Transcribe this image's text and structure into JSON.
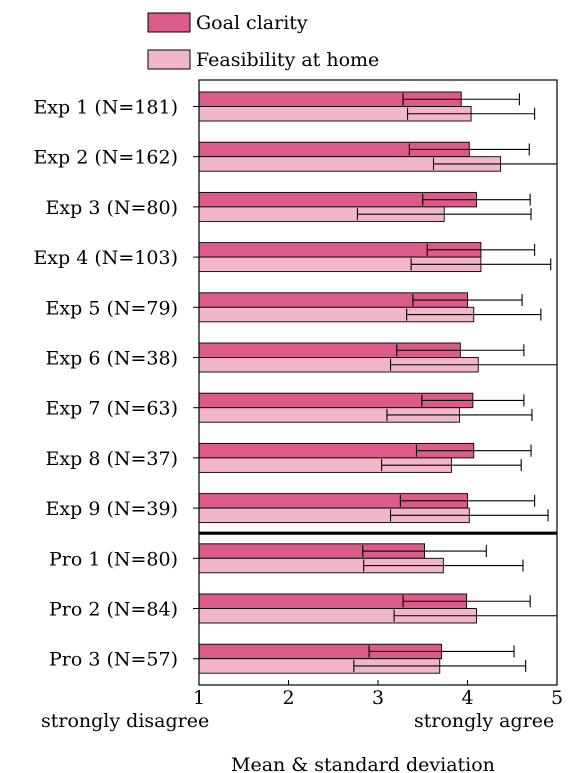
{
  "chart_data": {
    "type": "bar",
    "orientation": "horizontal",
    "categories": [
      "Exp 1 (N=181)",
      "Exp 2 (N=162)",
      "Exp 3 (N=80)",
      "Exp 4 (N=103)",
      "Exp 5 (N=79)",
      "Exp 6 (N=38)",
      "Exp 7 (N=63)",
      "Exp 8 (N=37)",
      "Exp 9 (N=39)",
      "Pro 1 (N=80)",
      "Pro 2 (N=84)",
      "Pro 3 (N=57)"
    ],
    "series": [
      {
        "name": "Goal clarity",
        "color": "#db5c8b",
        "values": [
          3.93,
          4.02,
          4.1,
          4.15,
          4.0,
          3.92,
          4.06,
          4.07,
          4.0,
          3.52,
          3.99,
          3.71
        ],
        "sd": [
          0.65,
          0.67,
          0.6,
          0.6,
          0.61,
          0.71,
          0.57,
          0.64,
          0.75,
          0.69,
          0.71,
          0.81
        ]
      },
      {
        "name": "Feasibility at home",
        "color": "#f2b6cb",
        "values": [
          4.04,
          4.37,
          3.74,
          4.15,
          4.07,
          4.12,
          3.91,
          3.82,
          4.02,
          3.73,
          4.1,
          3.69
        ],
        "sd": [
          0.71,
          0.75,
          0.97,
          0.78,
          0.75,
          0.98,
          0.81,
          0.78,
          0.88,
          0.89,
          0.92,
          0.96
        ]
      }
    ],
    "group_separator_after": "Exp 9 (N=39)",
    "xlim": [
      1,
      5
    ],
    "xticks": [
      "1",
      "2",
      "3",
      "4",
      "5"
    ],
    "x_end_labels": [
      "strongly disagree",
      "strongly agree"
    ],
    "xlabel": "Mean & standard deviation",
    "legend_position": "top"
  }
}
